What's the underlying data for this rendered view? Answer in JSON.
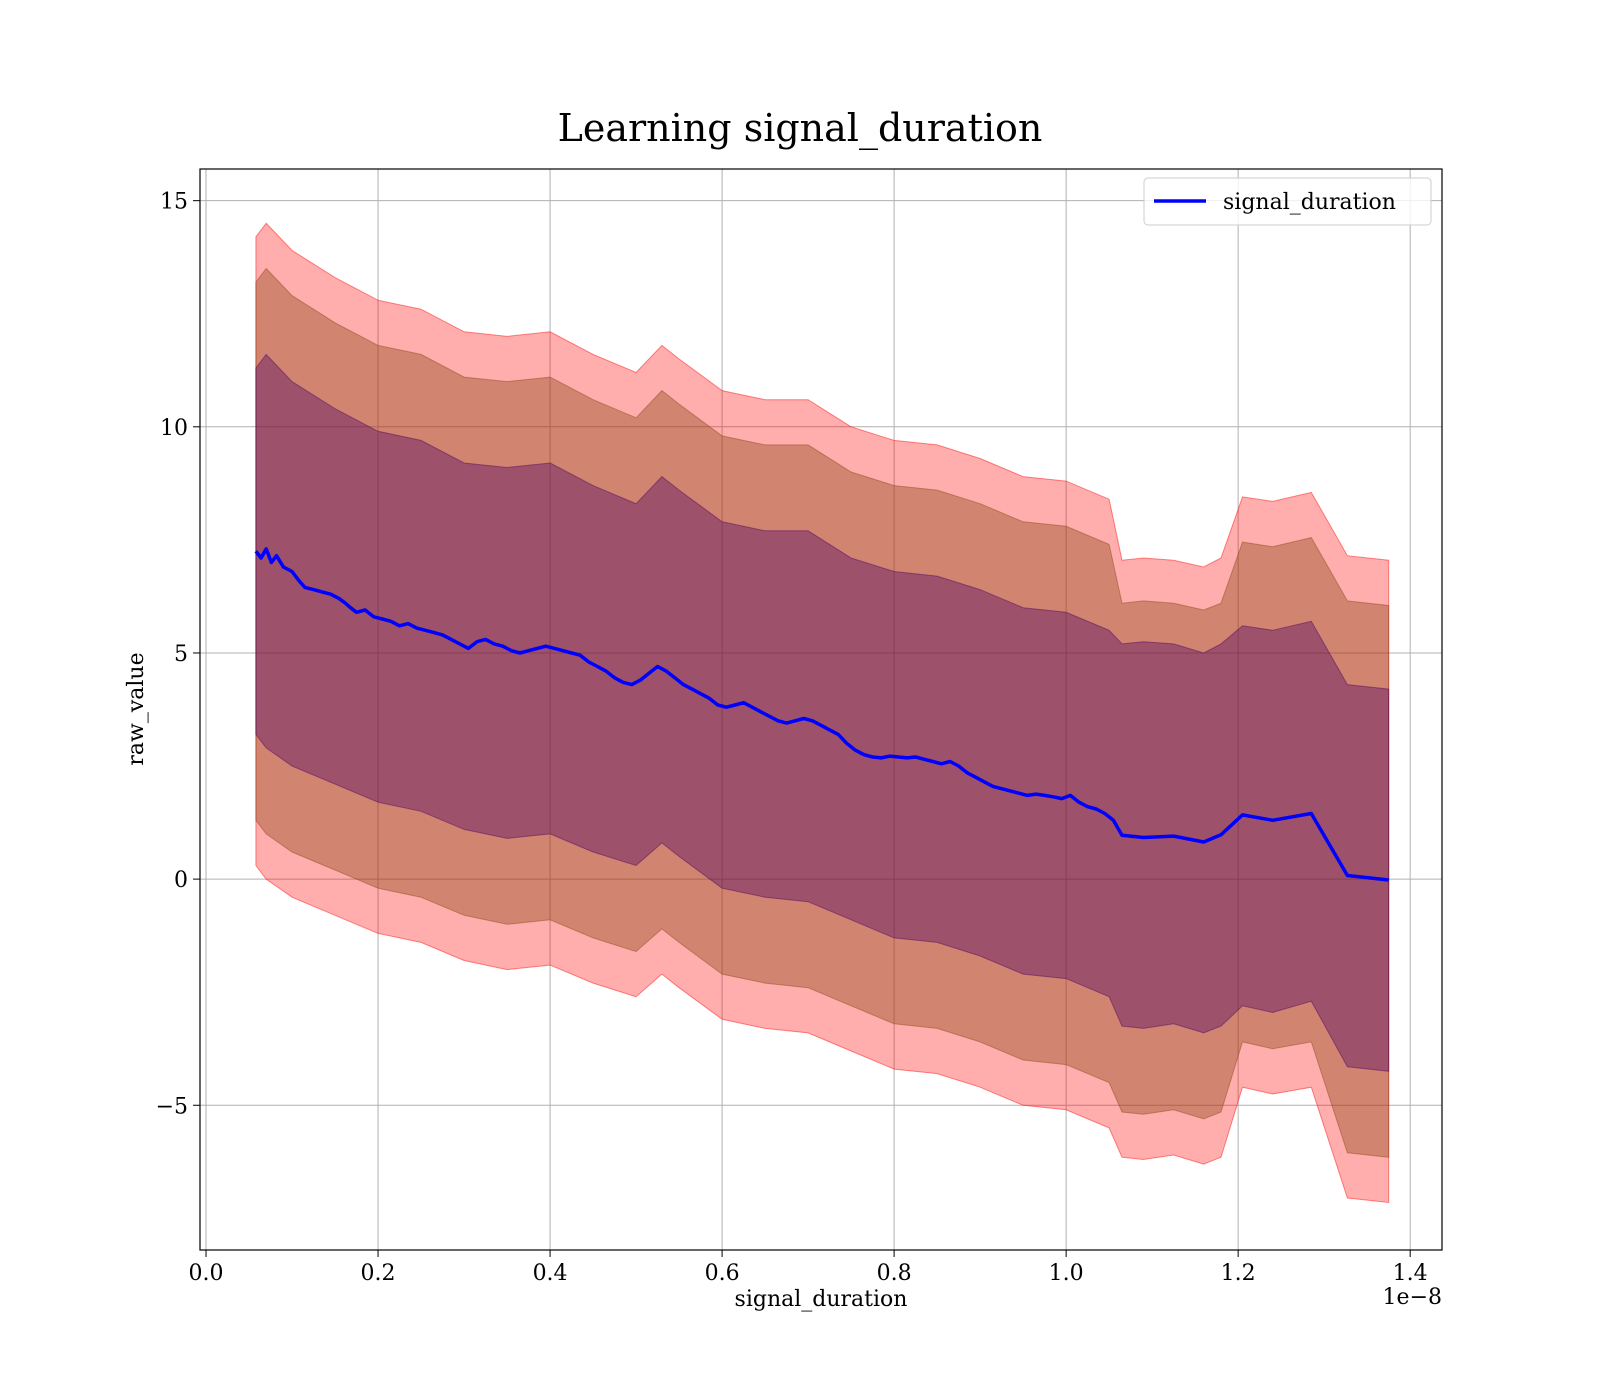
{
  "chart_data": {
    "type": "line",
    "title": "Learning signal_duration",
    "xlabel": "signal_duration",
    "ylabel": "raw_value",
    "x_scale_label": "1e−8",
    "x_ticks": [
      0.0,
      0.2,
      0.4,
      0.6,
      0.8,
      1.0,
      1.2,
      1.4
    ],
    "x_tick_labels": [
      "0.0",
      "0.2",
      "0.4",
      "0.6",
      "0.8",
      "1.0",
      "1.2",
      "1.4"
    ],
    "y_ticks": [
      -5,
      0,
      5,
      10,
      15
    ],
    "y_tick_labels": [
      "−5",
      "0",
      "5",
      "10",
      "15"
    ],
    "xlim": [
      -0.007,
      1.437
    ],
    "ylim": [
      -8.2,
      15.7
    ],
    "grid": true,
    "legend_position": "top-right",
    "line_color": "#0000ff",
    "band_colors": {
      "outer": "#ff0000",
      "middle": "#8b4513",
      "inner": "#4b0060"
    },
    "series": [
      {
        "name": "signal_duration",
        "x": [
          0.058,
          0.064,
          0.07,
          0.076,
          0.082,
          0.09,
          0.1,
          0.108,
          0.115,
          0.125,
          0.135,
          0.145,
          0.155,
          0.162,
          0.168,
          0.175,
          0.185,
          0.195,
          0.205,
          0.215,
          0.225,
          0.235,
          0.245,
          0.255,
          0.265,
          0.275,
          0.285,
          0.295,
          0.305,
          0.315,
          0.325,
          0.335,
          0.345,
          0.355,
          0.365,
          0.375,
          0.385,
          0.395,
          0.405,
          0.415,
          0.425,
          0.435,
          0.445,
          0.455,
          0.465,
          0.475,
          0.485,
          0.495,
          0.505,
          0.515,
          0.525,
          0.535,
          0.545,
          0.555,
          0.565,
          0.575,
          0.585,
          0.595,
          0.605,
          0.615,
          0.625,
          0.635,
          0.645,
          0.655,
          0.665,
          0.675,
          0.685,
          0.695,
          0.705,
          0.715,
          0.725,
          0.735,
          0.745,
          0.755,
          0.765,
          0.775,
          0.785,
          0.795,
          0.805,
          0.815,
          0.825,
          0.835,
          0.845,
          0.855,
          0.865,
          0.875,
          0.885,
          0.895,
          0.905,
          0.915,
          0.925,
          0.935,
          0.945,
          0.955,
          0.965,
          0.975,
          0.985,
          0.995,
          1.005,
          1.015,
          1.025,
          1.035,
          1.045,
          1.055,
          1.065,
          1.09,
          1.125,
          1.16,
          1.18,
          1.205,
          1.24,
          1.285,
          1.327,
          1.375
        ],
        "y": [
          7.25,
          7.1,
          7.3,
          7.0,
          7.15,
          6.9,
          6.8,
          6.6,
          6.45,
          6.4,
          6.35,
          6.3,
          6.2,
          6.1,
          6.0,
          5.9,
          5.95,
          5.8,
          5.75,
          5.7,
          5.6,
          5.65,
          5.55,
          5.5,
          5.45,
          5.4,
          5.3,
          5.2,
          5.1,
          5.25,
          5.3,
          5.2,
          5.15,
          5.05,
          5.0,
          5.05,
          5.1,
          5.15,
          5.1,
          5.05,
          5.0,
          4.95,
          4.8,
          4.7,
          4.6,
          4.45,
          4.35,
          4.3,
          4.4,
          4.55,
          4.7,
          4.6,
          4.45,
          4.3,
          4.2,
          4.1,
          4.0,
          3.85,
          3.8,
          3.85,
          3.9,
          3.8,
          3.7,
          3.6,
          3.5,
          3.45,
          3.5,
          3.55,
          3.5,
          3.4,
          3.3,
          3.2,
          3.0,
          2.85,
          2.75,
          2.7,
          2.68,
          2.72,
          2.7,
          2.68,
          2.7,
          2.65,
          2.6,
          2.55,
          2.6,
          2.5,
          2.35,
          2.25,
          2.15,
          2.05,
          2.0,
          1.95,
          1.9,
          1.85,
          1.88,
          1.85,
          1.82,
          1.78,
          1.85,
          1.7,
          1.6,
          1.55,
          1.45,
          1.3,
          0.97,
          0.92,
          0.95,
          0.82,
          0.98,
          1.42,
          1.3,
          1.45,
          0.08,
          -0.02
        ]
      }
    ],
    "bands": [
      {
        "name": "outer",
        "x": [
          0.058,
          0.07,
          0.1,
          0.15,
          0.2,
          0.25,
          0.3,
          0.35,
          0.4,
          0.45,
          0.5,
          0.53,
          0.55,
          0.6,
          0.65,
          0.7,
          0.75,
          0.8,
          0.85,
          0.9,
          0.95,
          1.0,
          1.05,
          1.065,
          1.09,
          1.125,
          1.16,
          1.18,
          1.205,
          1.24,
          1.285,
          1.327,
          1.375
        ],
        "upper": [
          14.2,
          14.5,
          13.9,
          13.3,
          12.8,
          12.6,
          12.1,
          12.0,
          12.1,
          11.6,
          11.2,
          11.8,
          11.5,
          10.8,
          10.6,
          10.6,
          10.0,
          9.7,
          9.6,
          9.3,
          8.9,
          8.8,
          8.4,
          7.05,
          7.1,
          7.05,
          6.9,
          7.1,
          8.45,
          8.35,
          8.55,
          7.15,
          7.05
        ],
        "lower": [
          0.3,
          0.0,
          -0.4,
          -0.8,
          -1.2,
          -1.4,
          -1.8,
          -2.0,
          -1.9,
          -2.3,
          -2.6,
          -2.1,
          -2.4,
          -3.1,
          -3.3,
          -3.4,
          -3.8,
          -4.2,
          -4.3,
          -4.6,
          -5.0,
          -5.1,
          -5.5,
          -6.15,
          -6.2,
          -6.1,
          -6.3,
          -6.15,
          -4.6,
          -4.75,
          -4.6,
          -7.05,
          -7.15
        ]
      },
      {
        "name": "middle",
        "x": [
          0.058,
          0.07,
          0.1,
          0.15,
          0.2,
          0.25,
          0.3,
          0.35,
          0.4,
          0.45,
          0.5,
          0.53,
          0.55,
          0.6,
          0.65,
          0.7,
          0.75,
          0.8,
          0.85,
          0.9,
          0.95,
          1.0,
          1.05,
          1.065,
          1.09,
          1.125,
          1.16,
          1.18,
          1.205,
          1.24,
          1.285,
          1.327,
          1.375
        ],
        "upper": [
          13.2,
          13.5,
          12.9,
          12.3,
          11.8,
          11.6,
          11.1,
          11.0,
          11.1,
          10.6,
          10.2,
          10.8,
          10.5,
          9.8,
          9.6,
          9.6,
          9.0,
          8.7,
          8.6,
          8.3,
          7.9,
          7.8,
          7.4,
          6.1,
          6.15,
          6.1,
          5.95,
          6.1,
          7.45,
          7.35,
          7.55,
          6.15,
          6.05
        ],
        "lower": [
          1.3,
          1.0,
          0.6,
          0.2,
          -0.2,
          -0.4,
          -0.8,
          -1.0,
          -0.9,
          -1.3,
          -1.6,
          -1.1,
          -1.4,
          -2.1,
          -2.3,
          -2.4,
          -2.8,
          -3.2,
          -3.3,
          -3.6,
          -4.0,
          -4.1,
          -4.5,
          -5.15,
          -5.2,
          -5.1,
          -5.3,
          -5.15,
          -3.6,
          -3.75,
          -3.6,
          -6.05,
          -6.15
        ]
      },
      {
        "name": "inner",
        "x": [
          0.058,
          0.07,
          0.1,
          0.15,
          0.2,
          0.25,
          0.3,
          0.35,
          0.4,
          0.45,
          0.5,
          0.53,
          0.55,
          0.6,
          0.65,
          0.7,
          0.75,
          0.8,
          0.85,
          0.9,
          0.95,
          1.0,
          1.05,
          1.065,
          1.09,
          1.125,
          1.16,
          1.18,
          1.205,
          1.24,
          1.285,
          1.327,
          1.375
        ],
        "upper": [
          11.3,
          11.6,
          11.0,
          10.4,
          9.9,
          9.7,
          9.2,
          9.1,
          9.2,
          8.7,
          8.3,
          8.9,
          8.6,
          7.9,
          7.7,
          7.7,
          7.1,
          6.8,
          6.7,
          6.4,
          6.0,
          5.9,
          5.5,
          5.2,
          5.25,
          5.2,
          5.0,
          5.2,
          5.6,
          5.5,
          5.7,
          4.3,
          4.2
        ],
        "lower": [
          3.2,
          2.9,
          2.5,
          2.1,
          1.7,
          1.5,
          1.1,
          0.9,
          1.0,
          0.6,
          0.3,
          0.8,
          0.5,
          -0.2,
          -0.4,
          -0.5,
          -0.9,
          -1.3,
          -1.4,
          -1.7,
          -2.1,
          -2.2,
          -2.6,
          -3.25,
          -3.3,
          -3.2,
          -3.4,
          -3.25,
          -2.8,
          -2.95,
          -2.7,
          -4.15,
          -4.25
        ]
      }
    ]
  }
}
